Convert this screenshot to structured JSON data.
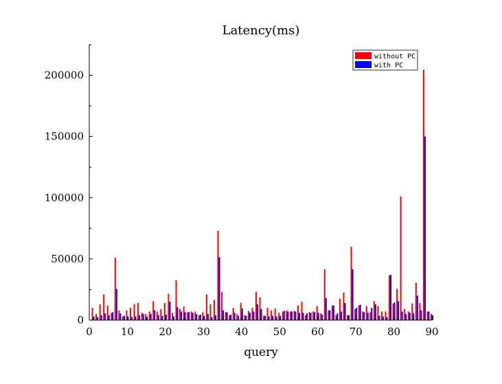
{
  "chart_data": {
    "type": "bar",
    "title": "Latency(ms)",
    "xlabel": "query",
    "ylabel": "",
    "xlim": [
      0,
      90
    ],
    "ylim": [
      0,
      225000
    ],
    "x_ticks": [
      0,
      10,
      20,
      30,
      40,
      50,
      60,
      70,
      80,
      90
    ],
    "y_ticks": [
      0,
      50000,
      100000,
      150000,
      200000
    ],
    "legend_position": "top-right",
    "grid": false,
    "series": [
      {
        "name": "without PC",
        "color": "#ff0000",
        "values": [
          10000,
          5000,
          13000,
          21000,
          12000,
          6000,
          51000,
          8000,
          3000,
          8000,
          10000,
          13000,
          14000,
          6000,
          5000,
          7000,
          15500,
          7000,
          9000,
          14000,
          21500,
          6000,
          32500,
          9000,
          11000,
          6500,
          7000,
          7000,
          4000,
          6500,
          21000,
          13000,
          16500,
          73000,
          23000,
          6500,
          4000,
          10000,
          5000,
          14000,
          4000,
          7500,
          10000,
          23000,
          18500,
          3500,
          10000,
          8000,
          9500,
          6000,
          7000,
          8000,
          7000,
          7500,
          12000,
          15000,
          4000,
          6500,
          7000,
          11500,
          5500,
          41500,
          8000,
          12000,
          4000,
          17500,
          22500,
          4000,
          60000,
          9000,
          12000,
          7000,
          11500,
          6500,
          15500,
          11500,
          7000,
          7000,
          36500,
          13500,
          25500,
          101000,
          9000,
          7000,
          13500,
          30500,
          14000,
          204500,
          7000,
          5000
        ]
      },
      {
        "name": "with PC",
        "color": "#0000ff",
        "values": [
          3000,
          2500,
          4000,
          5500,
          4000,
          6500,
          25500,
          5500,
          3500,
          3000,
          2500,
          3000,
          4000,
          5000,
          3000,
          5000,
          8000,
          4000,
          3500,
          4500,
          15000,
          3000,
          10500,
          7000,
          6500,
          6500,
          6000,
          5000,
          4500,
          3500,
          5000,
          2500,
          4000,
          51500,
          8000,
          6500,
          4500,
          6000,
          3500,
          9500,
          3500,
          6000,
          7000,
          13000,
          9000,
          3500,
          3000,
          3500,
          3000,
          3500,
          7500,
          7000,
          7000,
          7000,
          6000,
          6000,
          5500,
          6000,
          6500,
          6000,
          4500,
          18000,
          8000,
          12000,
          5500,
          7000,
          14000,
          4000,
          41500,
          10000,
          12500,
          6500,
          6000,
          10000,
          13000,
          3500,
          3000,
          2500,
          37000,
          14500,
          15500,
          7000,
          5000,
          6000,
          5500,
          20000,
          8000,
          150000,
          7000,
          4000
        ]
      }
    ]
  }
}
